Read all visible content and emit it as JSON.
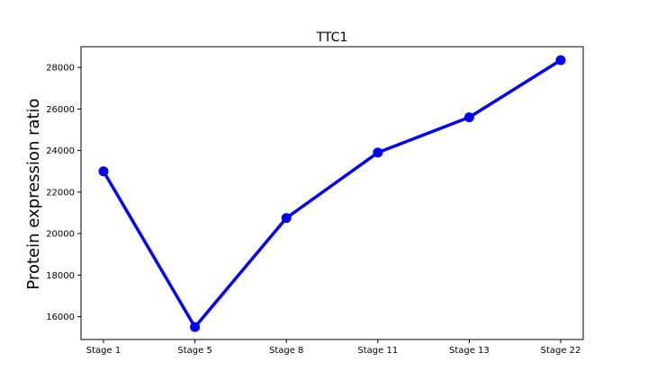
{
  "chart_data": {
    "type": "line",
    "title": "TTC1",
    "xlabel": "",
    "ylabel": "Protein expression ratio",
    "categories": [
      "Stage 1",
      "Stage 5",
      "Stage 8",
      "Stage 11",
      "Stage 13",
      "Stage 22"
    ],
    "series": [
      {
        "values": [
          23000,
          15500,
          20750,
          23900,
          25600,
          28350
        ],
        "color": "#0000ff"
      }
    ],
    "yticks": [
      16000,
      18000,
      20000,
      22000,
      24000,
      26000,
      28000
    ],
    "ylim": [
      14900,
      29000
    ],
    "grid": false
  }
}
